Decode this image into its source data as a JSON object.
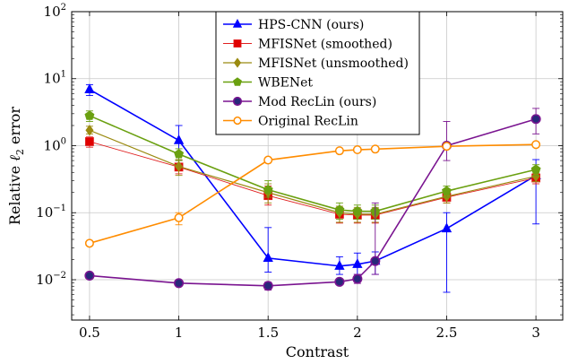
{
  "chart_data": {
    "type": "line",
    "xlabel": "Contrast",
    "ylabel": "Relative ℓ2 error",
    "yscale": "log",
    "xlim": [
      0.4,
      3.15
    ],
    "ylim": [
      0.0025,
      100
    ],
    "xticks": [
      {
        "value": 0.5,
        "label": "0.5"
      },
      {
        "value": 1,
        "label": "1"
      },
      {
        "value": 1.5,
        "label": "1.5"
      },
      {
        "value": 2,
        "label": "2"
      },
      {
        "value": 2.5,
        "label": "2.5"
      },
      {
        "value": 3,
        "label": "3"
      }
    ],
    "yticks": [
      {
        "value": 0.01,
        "base": "10",
        "exp": "−2"
      },
      {
        "value": 0.1,
        "base": "10",
        "exp": "−1"
      },
      {
        "value": 1,
        "base": "10",
        "exp": "0"
      },
      {
        "value": 10,
        "base": "10",
        "exp": "1"
      },
      {
        "value": 100,
        "base": "10",
        "exp": "2"
      }
    ],
    "grid": true,
    "legend_position": "top-center",
    "series": [
      {
        "name": "HPS-CNN (ours)",
        "color": "#0000ff",
        "marker": "triangle",
        "fill": "#0000ff",
        "stroke_width": 1.6,
        "points": [
          {
            "x": 0.5,
            "y": 6.9,
            "lo": 5.6,
            "hi": 8.1
          },
          {
            "x": 1,
            "y": 1.2,
            "lo": 0.6,
            "hi": 2.0
          },
          {
            "x": 1.5,
            "y": 0.021,
            "lo": 0.013,
            "hi": 0.06
          },
          {
            "x": 1.9,
            "y": 0.016,
            "lo": 0.012,
            "hi": 0.022
          },
          {
            "x": 2,
            "y": 0.017,
            "lo": 0.012,
            "hi": 0.025
          },
          {
            "x": 2.1,
            "y": 0.019,
            "lo": 0.012,
            "hi": 0.026
          },
          {
            "x": 2.5,
            "y": 0.058,
            "lo": 0.0065,
            "hi": 0.1
          },
          {
            "x": 3,
            "y": 0.36,
            "lo": 0.068,
            "hi": 0.62
          }
        ]
      },
      {
        "name": "MFISNet (smoothed)",
        "color": "#e02020",
        "marker": "square",
        "fill": "#e00000",
        "stroke_width": 0.9,
        "points": [
          {
            "x": 0.5,
            "y": 1.15,
            "lo": 0.95,
            "hi": 1.35
          },
          {
            "x": 1,
            "y": 0.48,
            "lo": 0.38,
            "hi": 0.6
          },
          {
            "x": 1.5,
            "y": 0.18,
            "lo": 0.13,
            "hi": 0.25
          },
          {
            "x": 1.9,
            "y": 0.095,
            "lo": 0.07,
            "hi": 0.12
          },
          {
            "x": 2,
            "y": 0.092,
            "lo": 0.07,
            "hi": 0.115
          },
          {
            "x": 2.1,
            "y": 0.092,
            "lo": 0.07,
            "hi": 0.115
          },
          {
            "x": 2.5,
            "y": 0.17,
            "lo": 0.14,
            "hi": 0.2
          },
          {
            "x": 3,
            "y": 0.33,
            "lo": 0.27,
            "hi": 0.38
          }
        ]
      },
      {
        "name": "MFISNet (unsmoothed)",
        "color": "#9a8a10",
        "marker": "diamond",
        "fill": "#9a8a10",
        "stroke_width": 1.2,
        "points": [
          {
            "x": 0.5,
            "y": 1.7,
            "lo": 1.5,
            "hi": 1.95
          },
          {
            "x": 1,
            "y": 0.49,
            "lo": 0.36,
            "hi": 0.62
          },
          {
            "x": 1.5,
            "y": 0.2,
            "lo": 0.14,
            "hi": 0.27
          },
          {
            "x": 1.9,
            "y": 0.1,
            "lo": 0.072,
            "hi": 0.125
          },
          {
            "x": 2,
            "y": 0.095,
            "lo": 0.072,
            "hi": 0.12
          },
          {
            "x": 2.1,
            "y": 0.095,
            "lo": 0.072,
            "hi": 0.12
          },
          {
            "x": 2.5,
            "y": 0.175,
            "lo": 0.14,
            "hi": 0.21
          },
          {
            "x": 3,
            "y": 0.35,
            "lo": 0.29,
            "hi": 0.41
          }
        ]
      },
      {
        "name": "WBENet",
        "color": "#6aa010",
        "marker": "pentagon",
        "fill": "#6aa010",
        "stroke_width": 1.6,
        "points": [
          {
            "x": 0.5,
            "y": 2.8,
            "lo": 2.3,
            "hi": 3.3
          },
          {
            "x": 1,
            "y": 0.75,
            "lo": 0.6,
            "hi": 0.9
          },
          {
            "x": 1.5,
            "y": 0.22,
            "lo": 0.17,
            "hi": 0.3
          },
          {
            "x": 1.9,
            "y": 0.11,
            "lo": 0.08,
            "hi": 0.14
          },
          {
            "x": 2,
            "y": 0.105,
            "lo": 0.08,
            "hi": 0.13
          },
          {
            "x": 2.1,
            "y": 0.105,
            "lo": 0.08,
            "hi": 0.13
          },
          {
            "x": 2.5,
            "y": 0.21,
            "lo": 0.17,
            "hi": 0.25
          },
          {
            "x": 3,
            "y": 0.44,
            "lo": 0.36,
            "hi": 0.52
          }
        ]
      },
      {
        "name": "Mod RecLin (ours)",
        "color": "#7a1490",
        "marker": "circle",
        "fill": "#28287a",
        "stroke_width": 1.6,
        "points": [
          {
            "x": 0.5,
            "y": 0.0115,
            "lo": 0.0108,
            "hi": 0.0122
          },
          {
            "x": 1,
            "y": 0.0089,
            "lo": 0.0084,
            "hi": 0.0094
          },
          {
            "x": 1.5,
            "y": 0.0081,
            "lo": 0.007,
            "hi": 0.0092
          },
          {
            "x": 1.9,
            "y": 0.0093,
            "lo": 0.0085,
            "hi": 0.0101
          },
          {
            "x": 2,
            "y": 0.0103,
            "lo": 0.0088,
            "hi": 0.012
          },
          {
            "x": 2.1,
            "y": 0.019,
            "lo": 0.012,
            "hi": 0.14
          },
          {
            "x": 2.5,
            "y": 1.0,
            "lo": 0.6,
            "hi": 2.3
          },
          {
            "x": 3,
            "y": 2.5,
            "lo": 1.5,
            "hi": 3.6
          }
        ]
      },
      {
        "name": "Original RecLin",
        "color": "#ff8c00",
        "marker": "circle-open",
        "fill": "#ffffff",
        "stroke_width": 1.6,
        "points": [
          {
            "x": 0.5,
            "y": 0.035,
            "lo": 0.033,
            "hi": 0.037
          },
          {
            "x": 1,
            "y": 0.084,
            "lo": 0.066,
            "hi": 0.1
          },
          {
            "x": 1.5,
            "y": 0.61,
            "lo": 0.58,
            "hi": 0.65
          },
          {
            "x": 1.9,
            "y": 0.84,
            "lo": 0.81,
            "hi": 0.87
          },
          {
            "x": 2,
            "y": 0.87,
            "lo": 0.84,
            "hi": 0.9
          },
          {
            "x": 2.1,
            "y": 0.89,
            "lo": 0.86,
            "hi": 0.92
          },
          {
            "x": 2.5,
            "y": 0.98,
            "lo": 0.95,
            "hi": 1.01
          },
          {
            "x": 3,
            "y": 1.04,
            "lo": 1.01,
            "hi": 1.07
          }
        ]
      }
    ]
  }
}
